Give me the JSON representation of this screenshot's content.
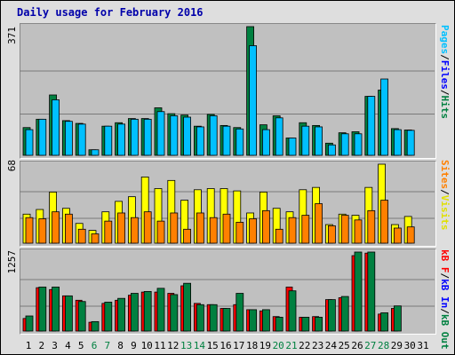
{
  "title": "Daily usage for February 2016",
  "chart_data": [
    {
      "type": "bar",
      "categories": [
        "1",
        "2",
        "3",
        "4",
        "5",
        "6",
        "7",
        "8",
        "9",
        "10",
        "11",
        "12",
        "13",
        "14",
        "15",
        "16",
        "17",
        "18",
        "19",
        "20",
        "21",
        "22",
        "23",
        "24",
        "25",
        "26",
        "27",
        "28",
        "29",
        "30",
        "31"
      ],
      "max_label": "371",
      "legend": [
        "Pages",
        "Files",
        "Hits"
      ],
      "series": [
        {
          "name": "Hits",
          "color": "#008040",
          "values": [
            80,
            104,
            174,
            100,
            92,
            16,
            84,
            94,
            106,
            106,
            137,
            120,
            116,
            84,
            118,
            86,
            80,
            371,
            88,
            114,
            50,
            94,
            86,
            35,
            65,
            68,
            170,
            188,
            77,
            73,
            0
          ]
        },
        {
          "name": "Files",
          "color": "#00c0ff",
          "values": [
            74,
            104,
            160,
            98,
            90,
            16,
            84,
            90,
            104,
            104,
            126,
            114,
            110,
            82,
            114,
            84,
            76,
            316,
            74,
            108,
            50,
            84,
            82,
            30,
            62,
            62,
            170,
            220,
            74,
            72,
            0
          ]
        },
        {
          "name": "Pages",
          "color": "#0000ff",
          "values": [
            0,
            0,
            0,
            0,
            0,
            0,
            0,
            0,
            0,
            0,
            0,
            0,
            0,
            0,
            0,
            0,
            0,
            0,
            0,
            0,
            0,
            0,
            0,
            0,
            0,
            0,
            0,
            0,
            0,
            0,
            0
          ]
        }
      ],
      "ylim": [
        0,
        371
      ]
    },
    {
      "type": "bar",
      "categories": [
        "1",
        "2",
        "3",
        "4",
        "5",
        "6",
        "7",
        "8",
        "9",
        "10",
        "11",
        "12",
        "13",
        "14",
        "15",
        "16",
        "17",
        "18",
        "19",
        "20",
        "21",
        "22",
        "23",
        "24",
        "25",
        "26",
        "27",
        "28",
        "29",
        "30",
        "31"
      ],
      "max_label": "68",
      "legend": [
        "Visits",
        "Sites"
      ],
      "series": [
        {
          "name": "Visits",
          "color": "#ffff00",
          "values": [
            25,
            29,
            44,
            30,
            17,
            11,
            27,
            36,
            40,
            57,
            47,
            54,
            37,
            46,
            47,
            47,
            45,
            26,
            44,
            30,
            27,
            46,
            48,
            16,
            25,
            24,
            48,
            68,
            16,
            23,
            0
          ]
        },
        {
          "name": "Sites",
          "color": "#ff8000",
          "values": [
            22,
            21,
            27,
            25,
            12,
            8,
            19,
            26,
            22,
            27,
            19,
            26,
            12,
            26,
            22,
            25,
            18,
            21,
            28,
            12,
            22,
            24,
            34,
            15,
            24,
            20,
            28,
            37,
            13,
            14,
            0
          ]
        }
      ],
      "ylim": [
        0,
        68
      ]
    },
    {
      "type": "bar",
      "categories": [
        "1",
        "2",
        "3",
        "4",
        "5",
        "6",
        "7",
        "8",
        "9",
        "10",
        "11",
        "12",
        "13",
        "14",
        "15",
        "16",
        "17",
        "18",
        "19",
        "20",
        "21",
        "22",
        "23",
        "24",
        "25",
        "26",
        "27",
        "28",
        "29",
        "30",
        "31"
      ],
      "max_label": "1257",
      "legend": [
        "kB F",
        "kB In",
        "kB Out"
      ],
      "series": [
        {
          "name": "kB F",
          "color": "#ff0000",
          "values": [
            200,
            690,
            660,
            560,
            490,
            140,
            440,
            490,
            570,
            620,
            620,
            600,
            720,
            440,
            420,
            360,
            420,
            340,
            320,
            230,
            700,
            220,
            230,
            500,
            530,
            1200,
            1240,
            270,
            360,
            0,
            0
          ]
        },
        {
          "name": "kB In",
          "color": "#0000ff",
          "values": [
            0,
            0,
            0,
            0,
            0,
            0,
            0,
            0,
            0,
            0,
            0,
            0,
            0,
            0,
            0,
            0,
            0,
            0,
            0,
            0,
            0,
            0,
            0,
            0,
            0,
            0,
            0,
            0,
            0,
            0,
            0
          ]
        },
        {
          "name": "kB Out",
          "color": "#008040",
          "values": [
            240,
            700,
            700,
            560,
            470,
            150,
            460,
            520,
            600,
            630,
            680,
            580,
            760,
            420,
            420,
            360,
            600,
            340,
            340,
            220,
            640,
            220,
            220,
            500,
            550,
            1257,
            1257,
            290,
            400,
            0,
            0
          ]
        }
      ],
      "ylim": [
        0,
        1257
      ]
    }
  ],
  "day_labels": [
    {
      "text": "1",
      "color": "#000000"
    },
    {
      "text": "2",
      "color": "#000000"
    },
    {
      "text": "3",
      "color": "#000000"
    },
    {
      "text": "4",
      "color": "#000000"
    },
    {
      "text": "5",
      "color": "#000000"
    },
    {
      "text": "6",
      "color": "#008040"
    },
    {
      "text": "7",
      "color": "#008040"
    },
    {
      "text": "8",
      "color": "#000000"
    },
    {
      "text": "9",
      "color": "#000000"
    },
    {
      "text": "10",
      "color": "#000000"
    },
    {
      "text": "11",
      "color": "#000000"
    },
    {
      "text": "12",
      "color": "#000000"
    },
    {
      "text": "13",
      "color": "#008040"
    },
    {
      "text": "14",
      "color": "#008040"
    },
    {
      "text": "15",
      "color": "#000000"
    },
    {
      "text": "16",
      "color": "#000000"
    },
    {
      "text": "17",
      "color": "#000000"
    },
    {
      "text": "18",
      "color": "#000000"
    },
    {
      "text": "19",
      "color": "#000000"
    },
    {
      "text": "20",
      "color": "#008040"
    },
    {
      "text": "21",
      "color": "#008040"
    },
    {
      "text": "22",
      "color": "#000000"
    },
    {
      "text": "23",
      "color": "#000000"
    },
    {
      "text": "24",
      "color": "#000000"
    },
    {
      "text": "25",
      "color": "#000000"
    },
    {
      "text": "26",
      "color": "#000000"
    },
    {
      "text": "27",
      "color": "#008040"
    },
    {
      "text": "28",
      "color": "#008040"
    },
    {
      "text": "29",
      "color": "#000000"
    },
    {
      "text": "30",
      "color": "#000000"
    },
    {
      "text": "31",
      "color": "#000000"
    }
  ]
}
